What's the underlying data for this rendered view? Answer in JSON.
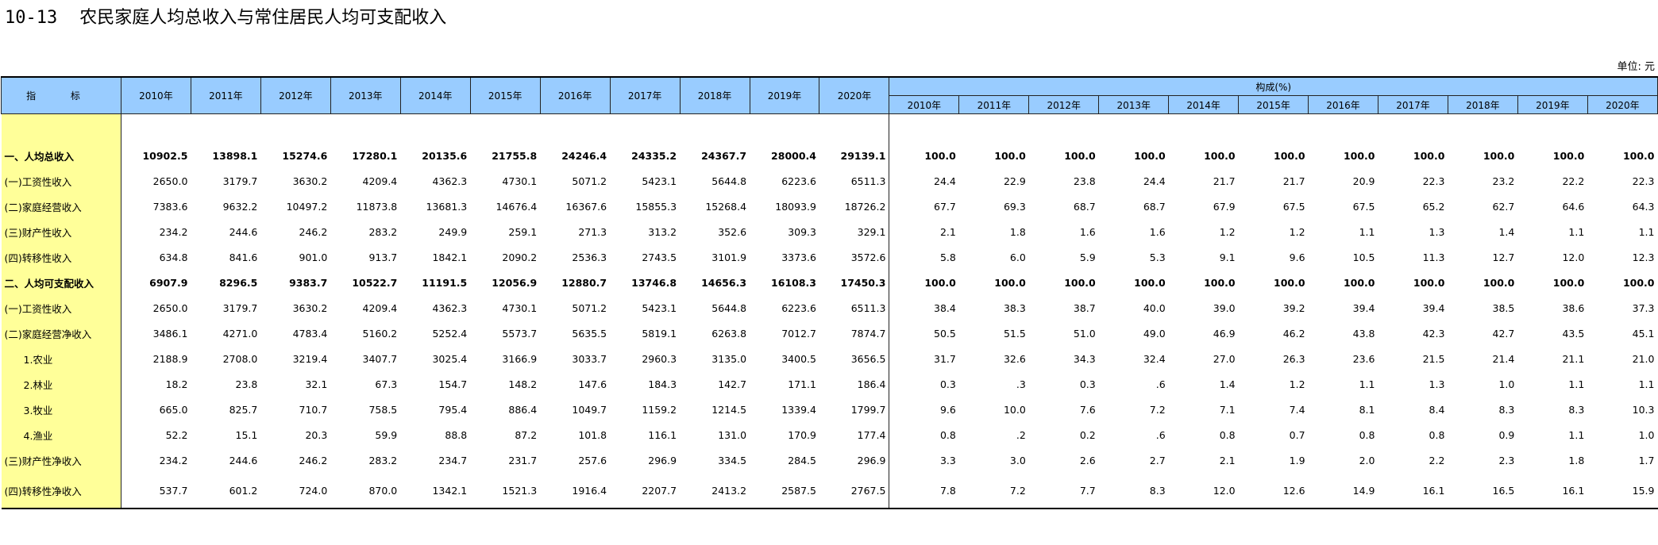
{
  "title": {
    "code": "10-13",
    "text": "农民家庭人均总收入与常住居民人均可支配收入"
  },
  "unit_label": "单位: 元",
  "header": {
    "indicator": "指 标",
    "years": [
      "2010年",
      "2011年",
      "2012年",
      "2013年",
      "2014年",
      "2015年",
      "2016年",
      "2017年",
      "2018年",
      "2019年",
      "2020年"
    ],
    "composition_label": "构成(%)"
  },
  "rows": [
    {
      "label": "一、人均总收入",
      "bold": true,
      "values": [
        "10902.5",
        "13898.1",
        "15274.6",
        "17280.1",
        "20135.6",
        "21755.8",
        "24246.4",
        "24335.2",
        "24367.7",
        "28000.4",
        "29139.1"
      ],
      "pct": [
        "100.0",
        "100.0",
        "100.0",
        "100.0",
        "100.0",
        "100.0",
        "100.0",
        "100.0",
        "100.0",
        "100.0",
        "100.0"
      ]
    },
    {
      "label": "(一)工资性收入",
      "bold": false,
      "values": [
        "2650.0",
        "3179.7",
        "3630.2",
        "4209.4",
        "4362.3",
        "4730.1",
        "5071.2",
        "5423.1",
        "5644.8",
        "6223.6",
        "6511.3"
      ],
      "pct": [
        "24.4",
        "22.9",
        "23.8",
        "24.4",
        "21.7",
        "21.7",
        "20.9",
        "22.3",
        "23.2",
        "22.2",
        "22.3"
      ]
    },
    {
      "label": "(二)家庭经营收入",
      "bold": false,
      "values": [
        "7383.6",
        "9632.2",
        "10497.2",
        "11873.8",
        "13681.3",
        "14676.4",
        "16367.6",
        "15855.3",
        "15268.4",
        "18093.9",
        "18726.2"
      ],
      "pct": [
        "67.7",
        "69.3",
        "68.7",
        "68.7",
        "67.9",
        "67.5",
        "67.5",
        "65.2",
        "62.7",
        "64.6",
        "64.3"
      ]
    },
    {
      "label": "(三)财产性收入",
      "bold": false,
      "values": [
        "234.2",
        "244.6",
        "246.2",
        "283.2",
        "249.9",
        "259.1",
        "271.3",
        "313.2",
        "352.6",
        "309.3",
        "329.1"
      ],
      "pct": [
        "2.1",
        "1.8",
        "1.6",
        "1.6",
        "1.2",
        "1.2",
        "1.1",
        "1.3",
        "1.4",
        "1.1",
        "1.1"
      ]
    },
    {
      "label": "(四)转移性收入",
      "bold": false,
      "values": [
        "634.8",
        "841.6",
        "901.0",
        "913.7",
        "1842.1",
        "2090.2",
        "2536.3",
        "2743.5",
        "3101.9",
        "3373.6",
        "3572.6"
      ],
      "pct": [
        "5.8",
        "6.0",
        "5.9",
        "5.3",
        "9.1",
        "9.6",
        "10.5",
        "11.3",
        "12.7",
        "12.0",
        "12.3"
      ]
    },
    {
      "label": "二、人均可支配收入",
      "bold": true,
      "values": [
        "6907.9",
        "8296.5",
        "9383.7",
        "10522.7",
        "11191.5",
        "12056.9",
        "12880.7",
        "13746.8",
        "14656.3",
        "16108.3",
        "17450.3"
      ],
      "pct": [
        "100.0",
        "100.0",
        "100.0",
        "100.0",
        "100.0",
        "100.0",
        "100.0",
        "100.0",
        "100.0",
        "100.0",
        "100.0"
      ]
    },
    {
      "label": "(一)工资性收入",
      "bold": false,
      "values": [
        "2650.0",
        "3179.7",
        "3630.2",
        "4209.4",
        "4362.3",
        "4730.1",
        "5071.2",
        "5423.1",
        "5644.8",
        "6223.6",
        "6511.3"
      ],
      "pct": [
        "38.4",
        "38.3",
        "38.7",
        "40.0",
        "39.0",
        "39.2",
        "39.4",
        "39.4",
        "38.5",
        "38.6",
        "37.3"
      ]
    },
    {
      "label": "(二)家庭经营净收入",
      "bold": false,
      "values": [
        "3486.1",
        "4271.0",
        "4783.4",
        "5160.2",
        "5252.4",
        "5573.7",
        "5635.5",
        "5819.1",
        "6263.8",
        "7012.7",
        "7874.7"
      ],
      "pct": [
        "50.5",
        "51.5",
        "51.0",
        "49.0",
        "46.9",
        "46.2",
        "43.8",
        "42.3",
        "42.7",
        "43.5",
        "45.1"
      ]
    },
    {
      "label": "1.农业",
      "bold": false,
      "indent": true,
      "values": [
        "2188.9",
        "2708.0",
        "3219.4",
        "3407.7",
        "3025.4",
        "3166.9",
        "3033.7",
        "2960.3",
        "3135.0",
        "3400.5",
        "3656.5"
      ],
      "pct": [
        "31.7",
        "32.6",
        "34.3",
        "32.4",
        "27.0",
        "26.3",
        "23.6",
        "21.5",
        "21.4",
        "21.1",
        "21.0"
      ]
    },
    {
      "label": "2.林业",
      "bold": false,
      "indent": true,
      "values": [
        "18.2",
        "23.8",
        "32.1",
        "67.3",
        "154.7",
        "148.2",
        "147.6",
        "184.3",
        "142.7",
        "171.1",
        "186.4"
      ],
      "pct": [
        "0.3",
        ".3",
        "0.3",
        ".6",
        "1.4",
        "1.2",
        "1.1",
        "1.3",
        "1.0",
        "1.1",
        "1.1"
      ]
    },
    {
      "label": "3.牧业",
      "bold": false,
      "indent": true,
      "values": [
        "665.0",
        "825.7",
        "710.7",
        "758.5",
        "795.4",
        "886.4",
        "1049.7",
        "1159.2",
        "1214.5",
        "1339.4",
        "1799.7"
      ],
      "pct": [
        "9.6",
        "10.0",
        "7.6",
        "7.2",
        "7.1",
        "7.4",
        "8.1",
        "8.4",
        "8.3",
        "8.3",
        "10.3"
      ]
    },
    {
      "label": "4.渔业",
      "bold": false,
      "indent": true,
      "values": [
        "52.2",
        "15.1",
        "20.3",
        "59.9",
        "88.8",
        "87.2",
        "101.8",
        "116.1",
        "131.0",
        "170.9",
        "177.4"
      ],
      "pct": [
        "0.8",
        ".2",
        "0.2",
        ".6",
        "0.8",
        "0.7",
        "0.8",
        "0.8",
        "0.9",
        "1.1",
        "1.0"
      ]
    },
    {
      "label": "(三)财产性净收入",
      "bold": false,
      "values": [
        "234.2",
        "244.6",
        "246.2",
        "283.2",
        "234.7",
        "231.7",
        "257.6",
        "296.9",
        "334.5",
        "284.5",
        "296.9"
      ],
      "pct": [
        "3.3",
        "3.0",
        "2.6",
        "2.7",
        "2.1",
        "1.9",
        "2.0",
        "2.2",
        "2.3",
        "1.8",
        "1.7"
      ]
    },
    {
      "label": "(四)转移性净收入",
      "bold": false,
      "values": [
        "537.7",
        "601.2",
        "724.0",
        "870.0",
        "1342.1",
        "1521.3",
        "1916.4",
        "2207.7",
        "2413.2",
        "2587.5",
        "2767.5"
      ],
      "pct": [
        "7.8",
        "7.2",
        "7.7",
        "8.3",
        "12.0",
        "12.6",
        "14.9",
        "16.1",
        "16.5",
        "16.1",
        "15.9"
      ]
    }
  ]
}
